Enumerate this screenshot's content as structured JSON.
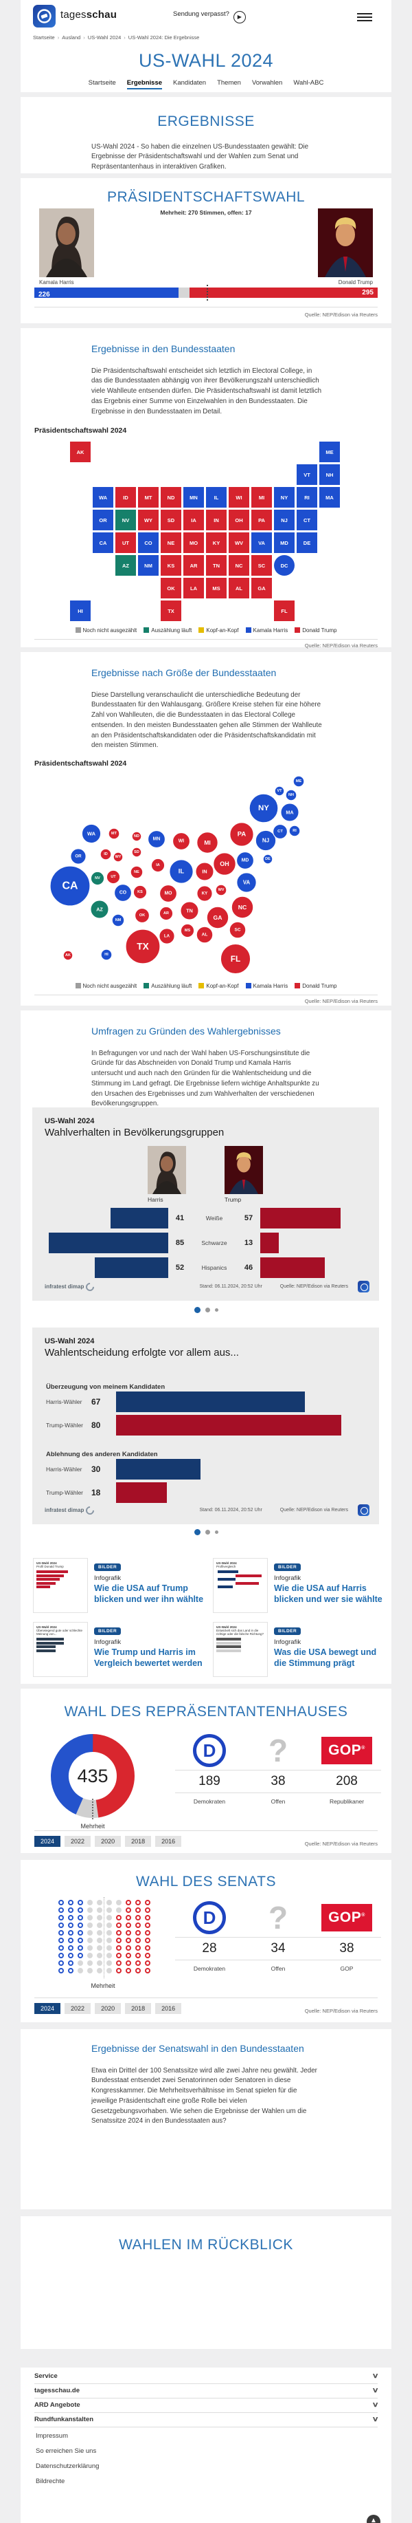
{
  "header": {
    "brand_regular": "tages",
    "brand_bold": "schau",
    "missed_show": "Sendung verpasst?",
    "breadcrumb": [
      "Startseite",
      "Ausland",
      "US-Wahl 2024",
      "US-Wahl 2024: Die Ergebnisse"
    ]
  },
  "hero": {
    "title": "US-WAHL 2024",
    "tabs": [
      {
        "label": "Startseite",
        "active": false
      },
      {
        "label": "Ergebnisse",
        "active": true
      },
      {
        "label": "Kandidaten",
        "active": false
      },
      {
        "label": "Themen",
        "active": false
      },
      {
        "label": "Vorwahlen",
        "active": false
      },
      {
        "label": "Wahl-ABC",
        "active": false
      }
    ]
  },
  "intro": {
    "title": "ERGEBNISSE",
    "text": "US-Wahl 2024 - So haben die einzelnen US-Bundesstaaten gewählt: Die Ergebnisse der Präsidentschaftswahl und der Wahlen zum Senat und Repräsentantenhaus in interaktiven Grafiken."
  },
  "states_section": {
    "heading": "Ergebnisse in den Bundesstaaten",
    "text": "Die Präsidentschaftswahl entscheidet sich letztlich im Electoral College, in das die Bundesstaaten abhängig von ihrer Bevölkerungszahl unterschiedlich viele Wahlleute entsenden dürfen. Die Präsidentschaftswahl ist damit letztlich das Ergebnis einer Summe von Einzelwahlen in den Bundesstaaten. Die Ergebnisse in den Bundesstaaten im Detail."
  },
  "size_section": {
    "heading": "Ergebnisse nach Größe der Bundesstaaten",
    "text": "Diese Darstellung veranschaulicht die unterschiedliche Bedeutung der Bundesstaaten für den Wahlausgang. Größere Kreise stehen für eine höhere Zahl von Wahlleuten, die die Bundesstaaten in das Electoral College entsenden. In den meisten Bundesstaaten gehen alle Stimmen der Wahlleute an den Präsidentschaftskandidaten oder die Präsidentschaftskandidatin mit den meisten Stimmen."
  },
  "umfragen": {
    "heading": "Umfragen zu Gründen des Wahlergebnisses",
    "text": "In Befragungen vor und nach der Wahl haben US-Forschungsinstitute die Gründe für das Abschneiden von Donald Trump und Kamala Harris untersucht und auch nach den Gründen für die Wahlentscheidung und die Stimmung im Land gefragt. Die Ergebnisse liefern wichtige Anhaltspunkte zu den Ursachen des Ergebnisses und zum Wahlverhalten der verschiedenen Bevölkerungsgruppen."
  },
  "senate_states_section": {
    "heading": "Ergebnisse der Senatswahl in den Bundesstaaten",
    "text": "Etwa ein Drittel der 100 Senatssitze wird alle zwei Jahre neu gewählt. Jeder Bundesstaat entsendet zwei Senatorinnen oder Senatoren in diese Kongresskammer. Die Mehrheitsverhältnisse im Senat spielen für die jeweilige Präsidentschaft eine große Rolle bei vielen Gesetzgebungsvorhaben. Wie sehen die Ergebnisse der Wahlen um die Senatssitze 2024 in den Bundesstaaten aus?"
  },
  "retrospect": {
    "title": "WAHLEN IM RÜCKBLICK"
  },
  "palette": {
    "harris": "#1d4fcf",
    "trump": "#d6232e",
    "counting": "#16806a",
    "open": "#9d9d9d",
    "tossup": "#e5bd00"
  },
  "legend": [
    {
      "key": "open",
      "label": "Noch nicht ausgezählt"
    },
    {
      "key": "counting",
      "label": "Auszählung läuft"
    },
    {
      "key": "tossup",
      "label": "Kopf-an-Kopf"
    },
    {
      "key": "harris",
      "label": "Kamala Harris"
    },
    {
      "key": "trump",
      "label": "Donald Trump"
    }
  ],
  "carousel": {
    "dots": 3,
    "active": 0
  },
  "chart_data": [
    {
      "id": "president_total",
      "type": "bar",
      "title": "PRÄSIDENTSCHAFTSWAHL",
      "majority_note": "Mehrheit: 270 Stimmen, offen: 17",
      "total": 538,
      "majority": 270,
      "candidates": [
        {
          "name": "Kamala Harris",
          "key": "harris",
          "value": 226
        },
        {
          "name": "offen",
          "key": "open",
          "value": 17
        },
        {
          "name": "Donald Trump",
          "key": "trump",
          "value": 295
        }
      ],
      "source": "Quelle: NEP/Edison via Reuters"
    },
    {
      "id": "state_map",
      "type": "choropleth-map",
      "title": "Präsidentschaftswahl 2024",
      "source": "Quelle: NEP/Edison via Reuters",
      "states": [
        {
          "a": "AK",
          "v": 3,
          "r": "trump",
          "c": 1,
          "w": 1,
          "x": 69,
          "y": 273
        },
        {
          "a": "ME",
          "v": 4,
          "r": "harris",
          "c": 12,
          "w": 1,
          "x": 405,
          "y": 20
        },
        {
          "a": "VT",
          "v": 3,
          "r": "harris",
          "c": 11,
          "w": 2,
          "x": 377,
          "y": 34
        },
        {
          "a": "NH",
          "v": 4,
          "r": "harris",
          "c": 12,
          "w": 2,
          "x": 394,
          "y": 40
        },
        {
          "a": "WA",
          "v": 12,
          "r": "harris",
          "c": 2,
          "w": 3,
          "x": 103,
          "y": 96
        },
        {
          "a": "ID",
          "v": 4,
          "r": "trump",
          "c": 3,
          "w": 3,
          "x": 124,
          "y": 126
        },
        {
          "a": "MT",
          "v": 4,
          "r": "trump",
          "c": 4,
          "w": 3,
          "x": 136,
          "y": 96
        },
        {
          "a": "ND",
          "v": 3,
          "r": "trump",
          "c": 5,
          "w": 3,
          "x": 169,
          "y": 100
        },
        {
          "a": "MN",
          "v": 10,
          "r": "harris",
          "c": 6,
          "w": 3,
          "x": 198,
          "y": 104
        },
        {
          "a": "IL",
          "v": 19,
          "r": "harris",
          "c": 7,
          "w": 3,
          "x": 234,
          "y": 151
        },
        {
          "a": "WI",
          "v": 10,
          "r": "trump",
          "c": 8,
          "w": 3,
          "x": 234,
          "y": 107
        },
        {
          "a": "MI",
          "v": 15,
          "r": "trump",
          "c": 9,
          "w": 3,
          "x": 272,
          "y": 109
        },
        {
          "a": "NY",
          "v": 28,
          "r": "harris",
          "c": 10,
          "w": 3,
          "x": 354,
          "y": 59
        },
        {
          "a": "RI",
          "v": 4,
          "r": "harris",
          "c": 11,
          "w": 3,
          "x": 399,
          "y": 92
        },
        {
          "a": "MA",
          "v": 11,
          "r": "harris",
          "c": 12,
          "w": 3,
          "x": 392,
          "y": 65
        },
        {
          "a": "OR",
          "v": 8,
          "r": "harris",
          "c": 2,
          "w": 4,
          "x": 84,
          "y": 129
        },
        {
          "a": "NV",
          "v": 6,
          "r": "counting",
          "c": 3,
          "w": 4,
          "x": 112,
          "y": 161
        },
        {
          "a": "WY",
          "v": 3,
          "r": "trump",
          "c": 4,
          "w": 4,
          "x": 142,
          "y": 130
        },
        {
          "a": "SD",
          "v": 3,
          "r": "trump",
          "c": 5,
          "w": 4,
          "x": 169,
          "y": 123
        },
        {
          "a": "IA",
          "v": 6,
          "r": "trump",
          "c": 6,
          "w": 4,
          "x": 200,
          "y": 142
        },
        {
          "a": "IN",
          "v": 11,
          "r": "trump",
          "c": 7,
          "w": 4,
          "x": 268,
          "y": 151
        },
        {
          "a": "OH",
          "v": 17,
          "r": "trump",
          "c": 8,
          "w": 4,
          "x": 297,
          "y": 140
        },
        {
          "a": "PA",
          "v": 19,
          "r": "trump",
          "c": 9,
          "w": 4,
          "x": 322,
          "y": 97
        },
        {
          "a": "NJ",
          "v": 14,
          "r": "harris",
          "c": 10,
          "w": 4,
          "x": 357,
          "y": 106
        },
        {
          "a": "CT",
          "v": 7,
          "r": "harris",
          "c": 11,
          "w": 4,
          "x": 378,
          "y": 93
        },
        {
          "a": "CA",
          "v": 54,
          "r": "harris",
          "c": 2,
          "w": 5,
          "x": 72,
          "y": 172
        },
        {
          "a": "UT",
          "v": 6,
          "r": "trump",
          "c": 3,
          "w": 5,
          "x": 135,
          "y": 159
        },
        {
          "a": "CO",
          "v": 10,
          "r": "harris",
          "c": 4,
          "w": 5,
          "x": 149,
          "y": 182
        },
        {
          "a": "NE",
          "v": 5,
          "r": "trump",
          "c": 5,
          "w": 5,
          "x": 169,
          "y": 152
        },
        {
          "a": "MO",
          "v": 10,
          "r": "trump",
          "c": 6,
          "w": 5,
          "x": 215,
          "y": 183
        },
        {
          "a": "KY",
          "v": 8,
          "r": "trump",
          "c": 7,
          "w": 5,
          "x": 268,
          "y": 183
        },
        {
          "a": "WV",
          "v": 4,
          "r": "trump",
          "c": 8,
          "w": 5,
          "x": 292,
          "y": 178
        },
        {
          "a": "VA",
          "v": 13,
          "r": "harris",
          "c": 9,
          "w": 5,
          "x": 329,
          "y": 167
        },
        {
          "a": "MD",
          "v": 10,
          "r": "harris",
          "c": 10,
          "w": 5,
          "x": 327,
          "y": 135
        },
        {
          "a": "DE",
          "v": 3,
          "r": "harris",
          "c": 11,
          "w": 5,
          "x": 360,
          "y": 133
        },
        {
          "a": "AZ",
          "v": 11,
          "r": "counting",
          "c": 3,
          "w": 6,
          "x": 115,
          "y": 206
        },
        {
          "a": "NM",
          "v": 5,
          "r": "harris",
          "c": 4,
          "w": 6,
          "x": 142,
          "y": 222
        },
        {
          "a": "KS",
          "v": 6,
          "r": "trump",
          "c": 5,
          "w": 6,
          "x": 174,
          "y": 181
        },
        {
          "a": "AR",
          "v": 6,
          "r": "trump",
          "c": 6,
          "w": 6,
          "x": 212,
          "y": 212
        },
        {
          "a": "TN",
          "v": 11,
          "r": "trump",
          "c": 7,
          "w": 6,
          "x": 246,
          "y": 208
        },
        {
          "a": "NC",
          "v": 16,
          "r": "trump",
          "c": 8,
          "w": 6,
          "x": 323,
          "y": 203
        },
        {
          "a": "SC",
          "v": 9,
          "r": "trump",
          "c": 9,
          "w": 6,
          "x": 316,
          "y": 236
        },
        {
          "a": "DC",
          "v": 3,
          "r": "harris",
          "c": 10,
          "w": 6,
          "x": null,
          "y": null
        },
        {
          "a": "OK",
          "v": 7,
          "r": "trump",
          "c": 5,
          "w": 7,
          "x": 177,
          "y": 215
        },
        {
          "a": "LA",
          "v": 8,
          "r": "trump",
          "c": 6,
          "w": 7,
          "x": 213,
          "y": 245
        },
        {
          "a": "MS",
          "v": 6,
          "r": "trump",
          "c": 7,
          "w": 7,
          "x": 243,
          "y": 237
        },
        {
          "a": "AL",
          "v": 9,
          "r": "trump",
          "c": 8,
          "w": 7,
          "x": 268,
          "y": 243
        },
        {
          "a": "GA",
          "v": 16,
          "r": "trump",
          "c": 9,
          "w": 7,
          "x": 287,
          "y": 218
        },
        {
          "a": "HI",
          "v": 4,
          "r": "harris",
          "c": 1,
          "w": 8,
          "x": 125,
          "y": 272
        },
        {
          "a": "TX",
          "v": 40,
          "r": "trump",
          "c": 5,
          "w": 8,
          "x": 178,
          "y": 260
        },
        {
          "a": "FL",
          "v": 30,
          "r": "trump",
          "c": 10,
          "w": 8,
          "x": 313,
          "y": 278
        }
      ]
    },
    {
      "id": "bubble_map",
      "type": "bubble-map",
      "title": "Präsidentschaftswahl 2024",
      "source": "Quelle: NEP/Edison via Reuters",
      "note": "Kreisfläche proportional zur Zahl der Wahlleute; Daten siehe state_map.states"
    },
    {
      "id": "demographics",
      "type": "bar",
      "kicker": "US-Wahl 2024",
      "title": "Wahlverhalten in Bevölkerungsgruppen",
      "categories": [
        "Weiße",
        "Schwarze",
        "Hispanics"
      ],
      "series": [
        {
          "name": "Harris",
          "color": "#15396f",
          "values": [
            41,
            85,
            52
          ]
        },
        {
          "name": "Trump",
          "color": "#a50f26",
          "values": [
            57,
            13,
            46
          ]
        }
      ],
      "provider": "infratest dimap",
      "stand": "Stand: 06.11.2024, 20:52 Uhr",
      "source": "Quelle: NEP/Edison via Reuters"
    },
    {
      "id": "reasons",
      "type": "bar",
      "kicker": "US-Wahl 2024",
      "title": "Wahlentscheidung erfolgte vor allem aus...",
      "groups": [
        {
          "label": "Überzeugung von meinem Kandidaten",
          "rows": [
            {
              "label": "Harris-Wähler",
              "value": 67,
              "color": "#15396f"
            },
            {
              "label": "Trump-Wähler",
              "value": 80,
              "color": "#a50f26"
            }
          ]
        },
        {
          "label": "Ablehnung des anderen Kandidaten",
          "rows": [
            {
              "label": "Harris-Wähler",
              "value": 30,
              "color": "#15396f"
            },
            {
              "label": "Trump-Wähler",
              "value": 18,
              "color": "#a50f26"
            }
          ]
        }
      ],
      "provider": "infratest dimap",
      "stand": "Stand: 06.11.2024, 20:52 Uhr",
      "source": "Quelle: NEP/Edison via Reuters"
    },
    {
      "id": "house",
      "type": "pie",
      "title": "WAHL DES REPRÄSENTANTENHAUSES",
      "total": 435,
      "center_value": "435",
      "majority_label": "Mehrheit",
      "slices": [
        {
          "label": "Demokraten",
          "value": 189,
          "color": "#2453cc",
          "logo": "dem",
          "logo_text": "D"
        },
        {
          "label": "Offen",
          "value": 38,
          "color": "#d0d0d0",
          "logo": "question",
          "logo_text": "?"
        },
        {
          "label": "Republikaner",
          "value": 208,
          "color": "#d9262e",
          "logo": "gop",
          "logo_text": "GOP"
        }
      ],
      "years": [
        "2024",
        "2022",
        "2020",
        "2018",
        "2016"
      ],
      "active_year": "2024",
      "source": "Quelle: NEP/Edison via Reuters"
    },
    {
      "id": "senate",
      "type": "seats",
      "title": "WAHL DES SENATS",
      "total": 100,
      "majority_label": "Mehrheit",
      "groups": [
        {
          "label": "Demokraten",
          "value": 28,
          "style": "ring-blue",
          "logo": "dem",
          "logo_text": "D"
        },
        {
          "label": "Offen",
          "value": 34,
          "style": "solid-gray",
          "logo": "question",
          "logo_text": "?"
        },
        {
          "label": "GOP",
          "value": 38,
          "style": "ring-red",
          "logo": "gop",
          "logo_text": "GOP"
        }
      ],
      "years": [
        "2024",
        "2022",
        "2020",
        "2018",
        "2016"
      ],
      "active_year": "2024",
      "source": "Quelle: NEP/Edison via Reuters"
    }
  ],
  "teasers": [
    {
      "badge": "BILDER",
      "kicker": "Infografik",
      "title": "Wie die USA auf Trump blicken und wer ihn wählte",
      "thumb_kicker": "US-Wahl 2024",
      "thumb_title": "Profil Donald Trump",
      "variant": "bars-red"
    },
    {
      "badge": "BILDER",
      "kicker": "Infografik",
      "title": "Wie die USA auf Harris blicken und wer sie wählte",
      "thumb_kicker": "US-Wahl 2024",
      "thumb_title": "Profilvergleich",
      "variant": "compare"
    },
    {
      "badge": "BILDER",
      "kicker": "Infografik",
      "title": "Wie Trump und Harris im Vergleich bewertet werden",
      "thumb_kicker": "US-Wahl 2024",
      "thumb_title": "Überwiegend gute oder schlechte Meinung von...",
      "variant": "photos-bars"
    },
    {
      "badge": "BILDER",
      "kicker": "Infografik",
      "title": "Was die USA bewegt und die Stimmung prägt",
      "thumb_kicker": "US-Wahl 2024",
      "thumb_title": "Entwickelt sich das Land in die richtige oder die falsche Richtung?",
      "variant": "list-gray"
    }
  ],
  "footer": {
    "accordion": [
      "Service",
      "tagesschau.de",
      "ARD Angebote",
      "Rundfunkanstalten"
    ],
    "links": [
      "Impressum",
      "So erreichen Sie uns",
      "Datenschutzerklärung",
      "Bildrechte"
    ]
  }
}
